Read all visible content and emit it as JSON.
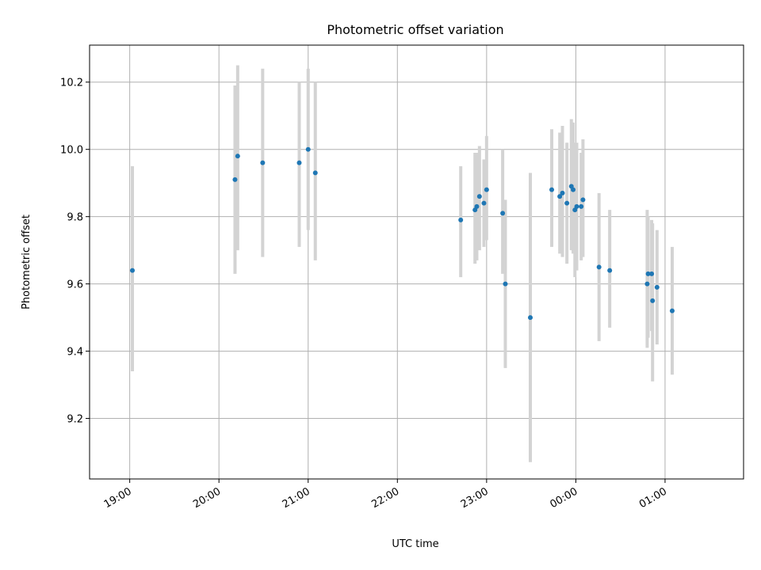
{
  "chart_data": {
    "type": "scatter",
    "title": "Photometric offset variation",
    "xlabel": "UTC time",
    "ylabel": "Photometric offset",
    "x_unit": "hours (UTC, continuing past midnight)",
    "xlim": [
      18.55,
      25.88
    ],
    "ylim": [
      9.02,
      10.31
    ],
    "x_ticks": [
      {
        "value": 19,
        "label": "19:00"
      },
      {
        "value": 20,
        "label": "20:00"
      },
      {
        "value": 21,
        "label": "21:00"
      },
      {
        "value": 22,
        "label": "22:00"
      },
      {
        "value": 23,
        "label": "23:00"
      },
      {
        "value": 24,
        "label": "00:00"
      },
      {
        "value": 25,
        "label": "01:00"
      }
    ],
    "y_ticks": [
      {
        "value": 9.2,
        "label": "9.2"
      },
      {
        "value": 9.4,
        "label": "9.4"
      },
      {
        "value": 9.6,
        "label": "9.6"
      },
      {
        "value": 9.8,
        "label": "9.8"
      },
      {
        "value": 10.0,
        "label": "10.0"
      },
      {
        "value": 10.2,
        "label": "10.2"
      }
    ],
    "grid": true,
    "point_color": "#1f77b4",
    "errorbar_color": "#d3d3d3",
    "points": [
      {
        "x": 19.03,
        "y": 9.64,
        "ylo": 9.34,
        "yhi": 9.95
      },
      {
        "x": 20.18,
        "y": 9.91,
        "ylo": 9.63,
        "yhi": 10.19
      },
      {
        "x": 20.21,
        "y": 9.98,
        "ylo": 9.7,
        "yhi": 10.25
      },
      {
        "x": 20.49,
        "y": 9.96,
        "ylo": 9.68,
        "yhi": 10.24
      },
      {
        "x": 20.9,
        "y": 9.96,
        "ylo": 9.71,
        "yhi": 10.2
      },
      {
        "x": 21.0,
        "y": 10.0,
        "ylo": 9.76,
        "yhi": 10.24
      },
      {
        "x": 21.08,
        "y": 9.93,
        "ylo": 9.67,
        "yhi": 10.2
      },
      {
        "x": 22.71,
        "y": 9.79,
        "ylo": 9.62,
        "yhi": 9.95
      },
      {
        "x": 22.87,
        "y": 9.82,
        "ylo": 9.66,
        "yhi": 9.99
      },
      {
        "x": 22.89,
        "y": 9.83,
        "ylo": 9.67,
        "yhi": 9.99
      },
      {
        "x": 22.92,
        "y": 9.86,
        "ylo": 9.7,
        "yhi": 10.01
      },
      {
        "x": 22.97,
        "y": 9.84,
        "ylo": 9.71,
        "yhi": 9.97
      },
      {
        "x": 23.0,
        "y": 9.88,
        "ylo": 9.73,
        "yhi": 10.04
      },
      {
        "x": 23.18,
        "y": 9.81,
        "ylo": 9.63,
        "yhi": 10.0
      },
      {
        "x": 23.21,
        "y": 9.6,
        "ylo": 9.35,
        "yhi": 9.85
      },
      {
        "x": 23.49,
        "y": 9.5,
        "ylo": 9.07,
        "yhi": 9.93
      },
      {
        "x": 23.73,
        "y": 9.88,
        "ylo": 9.71,
        "yhi": 10.06
      },
      {
        "x": 23.82,
        "y": 9.86,
        "ylo": 9.69,
        "yhi": 10.05
      },
      {
        "x": 23.85,
        "y": 9.87,
        "ylo": 9.68,
        "yhi": 10.07
      },
      {
        "x": 23.9,
        "y": 9.84,
        "ylo": 9.66,
        "yhi": 10.02
      },
      {
        "x": 23.95,
        "y": 9.89,
        "ylo": 9.7,
        "yhi": 10.09
      },
      {
        "x": 23.97,
        "y": 9.88,
        "ylo": 9.69,
        "yhi": 10.08
      },
      {
        "x": 23.99,
        "y": 9.82,
        "ylo": 9.62,
        "yhi": 10.02
      },
      {
        "x": 24.01,
        "y": 9.83,
        "ylo": 9.64,
        "yhi": 10.02
      },
      {
        "x": 24.06,
        "y": 9.83,
        "ylo": 9.67,
        "yhi": 9.99
      },
      {
        "x": 24.08,
        "y": 9.85,
        "ylo": 9.68,
        "yhi": 10.03
      },
      {
        "x": 24.26,
        "y": 9.65,
        "ylo": 9.43,
        "yhi": 9.87
      },
      {
        "x": 24.38,
        "y": 9.64,
        "ylo": 9.47,
        "yhi": 9.82
      },
      {
        "x": 24.8,
        "y": 9.6,
        "ylo": 9.41,
        "yhi": 9.82
      },
      {
        "x": 24.81,
        "y": 9.63,
        "ylo": 9.44,
        "yhi": 9.8
      },
      {
        "x": 24.85,
        "y": 9.63,
        "ylo": 9.46,
        "yhi": 9.79
      },
      {
        "x": 24.86,
        "y": 9.55,
        "ylo": 9.31,
        "yhi": 9.78
      },
      {
        "x": 24.91,
        "y": 9.59,
        "ylo": 9.42,
        "yhi": 9.76
      },
      {
        "x": 25.08,
        "y": 9.52,
        "ylo": 9.33,
        "yhi": 9.71
      }
    ]
  }
}
